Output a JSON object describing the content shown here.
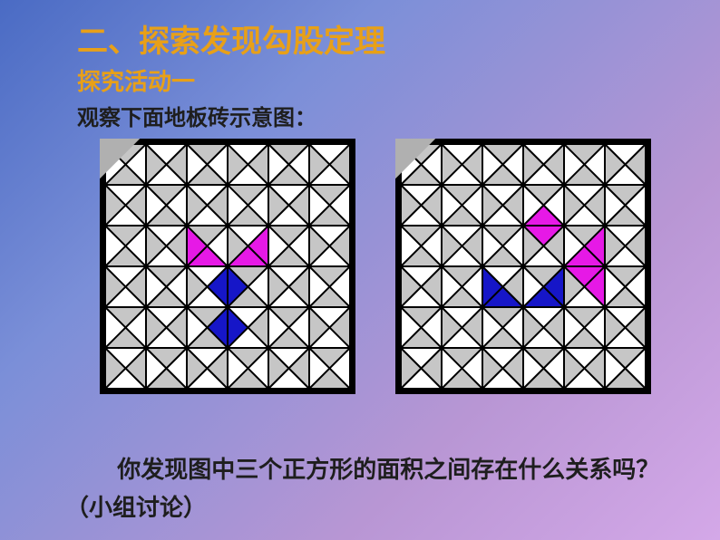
{
  "title": "二、探索发现勾股定理",
  "subtitle": "探究活动一",
  "instruction": "观察下面地板砖示意图：",
  "question": "你发现图中三个正方形的面积之间存在什么关系吗？（小组讨论）",
  "gridConfig": {
    "rows": 6,
    "cols": 6,
    "cellSize": 45,
    "colors": {
      "border": "#000000",
      "bg_gray": "#c6c6c6",
      "bg_white": "#ffffff",
      "magenta": "#e619e6",
      "blue": "#1616c8",
      "corner_arrow": "#b0b0b0"
    }
  },
  "leftGrid": {
    "colored": [
      {
        "r": 2,
        "c": 2,
        "tri": "left",
        "fill": "#e619e6"
      },
      {
        "r": 2,
        "c": 2,
        "tri": "bottom",
        "fill": "#e619e6"
      },
      {
        "r": 2,
        "c": 3,
        "tri": "bottom",
        "fill": "#e619e6"
      },
      {
        "r": 2,
        "c": 3,
        "tri": "right",
        "fill": "#e619e6"
      },
      {
        "r": 3,
        "c": 2,
        "tri": "right",
        "fill": "#1616c8"
      },
      {
        "r": 3,
        "c": 3,
        "tri": "left",
        "fill": "#1616c8"
      },
      {
        "r": 4,
        "c": 2,
        "tri": "right",
        "fill": "#1616c8"
      },
      {
        "r": 4,
        "c": 3,
        "tri": "left",
        "fill": "#1616c8"
      }
    ]
  },
  "rightGrid": {
    "colored": [
      {
        "r": 1,
        "c": 3,
        "tri": "bottom",
        "fill": "#e619e6"
      },
      {
        "r": 2,
        "c": 3,
        "tri": "top",
        "fill": "#e619e6"
      },
      {
        "r": 2,
        "c": 4,
        "tri": "bottom",
        "fill": "#e619e6"
      },
      {
        "r": 2,
        "c": 4,
        "tri": "right",
        "fill": "#e619e6"
      },
      {
        "r": 3,
        "c": 4,
        "tri": "top",
        "fill": "#e619e6"
      },
      {
        "r": 3,
        "c": 4,
        "tri": "right",
        "fill": "#e619e6"
      },
      {
        "r": 3,
        "c": 2,
        "tri": "bottom",
        "fill": "#1616c8"
      },
      {
        "r": 3,
        "c": 2,
        "tri": "left",
        "fill": "#1616c8"
      },
      {
        "r": 3,
        "c": 3,
        "tri": "bottom",
        "fill": "#1616c8"
      },
      {
        "r": 3,
        "c": 3,
        "tri": "right",
        "fill": "#1616c8"
      }
    ]
  }
}
